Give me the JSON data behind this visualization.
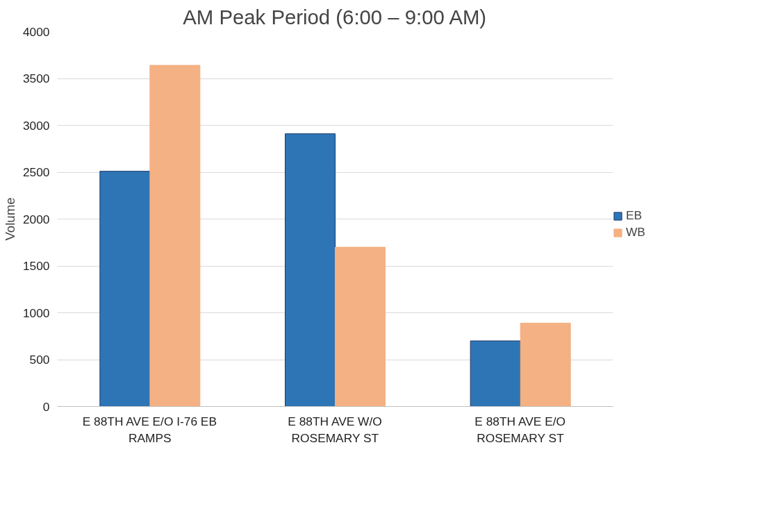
{
  "chart_data": {
    "type": "bar",
    "title": "AM Peak Period (6:00 – 9:00 AM)",
    "ylabel": "Volume",
    "categories": [
      "E 88TH AVE E/O I-76 EB RAMPS",
      "E 88TH AVE W/O ROSEMARY ST",
      "E 88TH AVE E/O ROSEMARY ST"
    ],
    "series": [
      {
        "name": "EB",
        "color": "#2e75b6",
        "values": [
          2510,
          2910,
          700
        ]
      },
      {
        "name": "WB",
        "color": "#f4b183",
        "values": [
          3640,
          1700,
          890
        ]
      }
    ],
    "ylim": [
      0,
      4000
    ],
    "yticks": [
      0,
      500,
      1000,
      1500,
      2000,
      2500,
      3000,
      3500,
      4000
    ],
    "grid": "y",
    "legend": "right"
  }
}
